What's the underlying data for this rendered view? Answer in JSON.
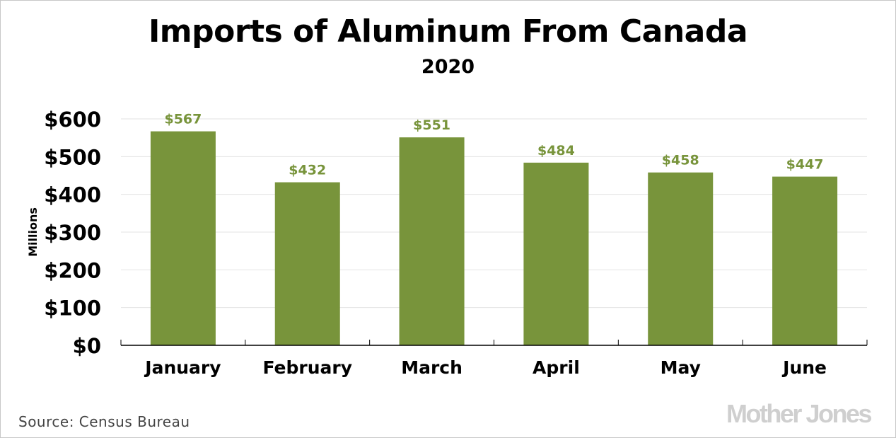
{
  "chart_data": {
    "type": "bar",
    "title": "Imports of Aluminum From Canada",
    "subtitle": "2020",
    "ylabel": "Millions",
    "xlabel": "",
    "categories": [
      "January",
      "February",
      "March",
      "April",
      "May",
      "June"
    ],
    "values": [
      567,
      432,
      551,
      484,
      458,
      447
    ],
    "data_labels": [
      "$567",
      "$432",
      "$551",
      "$484",
      "$458",
      "$447"
    ],
    "ylim": [
      0,
      600
    ],
    "yticks": [
      0,
      100,
      200,
      300,
      400,
      500,
      600
    ],
    "ytick_labels": [
      "$0",
      "$100",
      "$200",
      "$300",
      "$400",
      "$500",
      "$600"
    ],
    "grid": true,
    "bar_color": "#78943b",
    "label_color": "#78943b"
  },
  "footer": {
    "source": "Source:  Census Bureau",
    "logo": "Mother Jones"
  }
}
